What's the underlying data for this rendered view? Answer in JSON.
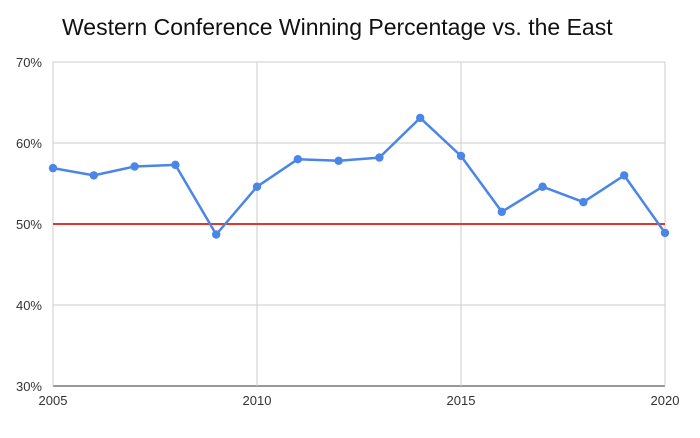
{
  "chart_data": {
    "type": "line",
    "title": "Western Conference Winning Percentage vs. the East",
    "xlabel": "",
    "ylabel": "",
    "x": [
      2005,
      2006,
      2007,
      2008,
      2009,
      2010,
      2011,
      2012,
      2013,
      2014,
      2015,
      2016,
      2017,
      2018,
      2019,
      2020
    ],
    "series": [
      {
        "values": [
          0.569,
          0.56,
          0.571,
          0.573,
          0.487,
          0.546,
          0.58,
          0.578,
          0.582,
          0.631,
          0.584,
          0.515,
          0.546,
          0.527,
          0.56,
          0.489
        ]
      }
    ],
    "reference_line": {
      "value": 0.5
    },
    "xlim": [
      2005,
      2020
    ],
    "ylim": [
      0.3,
      0.7
    ],
    "x_ticks": [
      2005,
      2010,
      2015,
      2020
    ],
    "y_ticks": [
      0.3,
      0.4,
      0.5,
      0.6,
      0.7
    ],
    "x_tick_labels": [
      "2005",
      "2010",
      "2015",
      "2020"
    ],
    "y_tick_labels": [
      "30%",
      "40%",
      "50%",
      "60%",
      "70%"
    ],
    "grid": true,
    "colors": {
      "series": "#4a86e8",
      "reference_line": "#e0382c",
      "grid": "#cccccc",
      "axis": "#333333"
    }
  }
}
